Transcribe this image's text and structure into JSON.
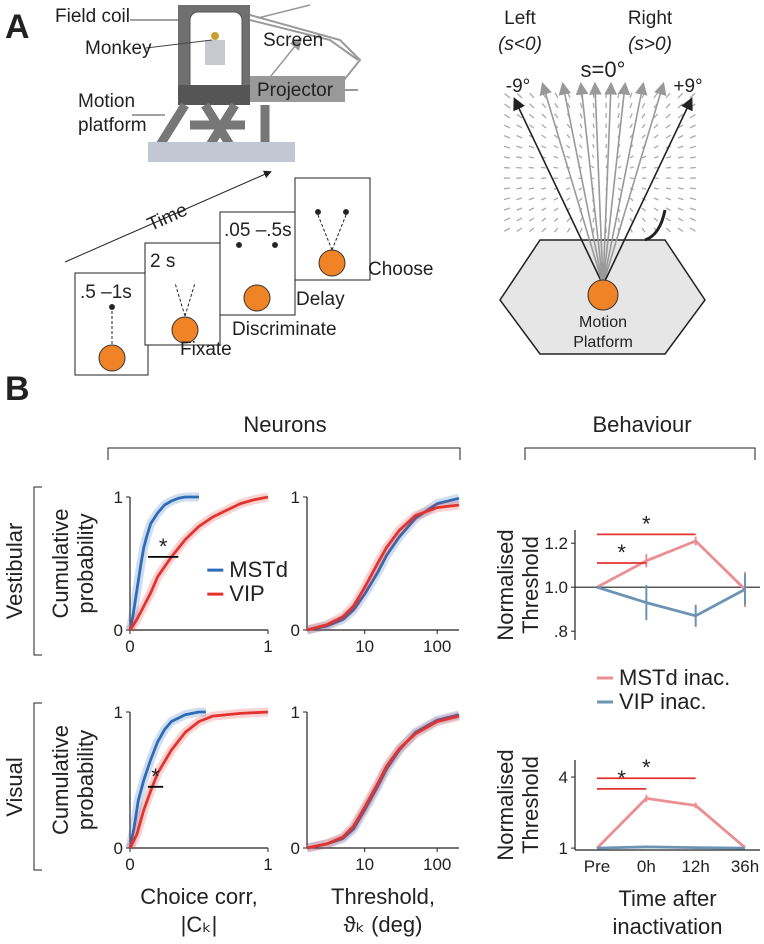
{
  "panel_a": {
    "letter": "A",
    "rig": {
      "field_coil": "Field coil",
      "monkey": "Monkey",
      "screen": "Screen",
      "projector": "Projector",
      "motion_platform": [
        "Motion",
        "platform"
      ]
    },
    "timeline": {
      "axis": "Time",
      "epochs": [
        {
          "duration": ".5 –1s",
          "label": "Fixate"
        },
        {
          "duration": "2 s",
          "label": "Discriminate"
        },
        {
          "duration": ".05 –.5s",
          "label": "Delay"
        },
        {
          "label": "Choose"
        }
      ]
    },
    "stimulus": {
      "left": "Left",
      "left_range": "(s<0)",
      "right": "Right",
      "right_range": "(s>0)",
      "center": "s=0°",
      "min_heading": "-9°",
      "max_heading": "+9°",
      "platform": [
        "Motion",
        "Platform"
      ]
    }
  },
  "panel_b": {
    "letter": "B",
    "headers": [
      "Neurons",
      "Behaviour"
    ],
    "rows": [
      "Vestibular",
      "Visual"
    ]
  },
  "chart_data": [
    {
      "type": "line",
      "xlim": [
        0,
        1
      ],
      "ylim": [
        0,
        1
      ],
      "xticks": [
        0,
        1
      ],
      "yticks": [
        0,
        1
      ],
      "ylabel": [
        "Cumulative",
        "probability"
      ],
      "legend": "right",
      "series": [
        {
          "name": "MSTd",
          "color": "#2e6bb8",
          "x": [
            0,
            0.02,
            0.05,
            0.08,
            0.1,
            0.12,
            0.15,
            0.2,
            0.25,
            0.3,
            0.35,
            0.4,
            0.5
          ],
          "values": [
            0,
            0.1,
            0.3,
            0.5,
            0.62,
            0.7,
            0.8,
            0.88,
            0.94,
            0.97,
            0.99,
            1,
            1
          ]
        },
        {
          "name": "VIP",
          "color": "#e2332f",
          "x": [
            0,
            0.05,
            0.1,
            0.15,
            0.2,
            0.3,
            0.4,
            0.5,
            0.6,
            0.7,
            0.8,
            0.9,
            1
          ],
          "values": [
            0,
            0.08,
            0.18,
            0.28,
            0.4,
            0.55,
            0.68,
            0.78,
            0.85,
            0.9,
            0.95,
            0.98,
            1
          ]
        }
      ],
      "brackets": [
        {
          "x": [
            0.13,
            0.35
          ],
          "y": 0.55,
          "label": "*"
        }
      ],
      "bracket_color": "#000000"
    },
    {
      "type": "line",
      "xscale": "log",
      "xlim": [
        1.6,
        200
      ],
      "ylim": [
        0,
        1
      ],
      "xticks": [
        10,
        100
      ],
      "yticks": [
        0,
        1
      ],
      "series": [
        {
          "color": "#2e6bb8",
          "x": [
            1.6,
            3,
            5,
            7,
            10,
            15,
            20,
            30,
            50,
            100,
            200
          ],
          "values": [
            0,
            0.03,
            0.08,
            0.15,
            0.27,
            0.43,
            0.56,
            0.7,
            0.84,
            0.95,
            0.99
          ]
        },
        {
          "color": "#e2332f",
          "x": [
            1.6,
            3,
            5,
            7,
            10,
            15,
            20,
            30,
            50,
            100,
            200
          ],
          "values": [
            0,
            0.04,
            0.1,
            0.18,
            0.32,
            0.5,
            0.62,
            0.75,
            0.86,
            0.92,
            0.94
          ]
        }
      ]
    },
    {
      "type": "line",
      "categories": [
        null,
        null,
        null,
        null
      ],
      "ylim": [
        0.76,
        1.26
      ],
      "yticks": [
        {
          "value": 0.8,
          "label": ".8"
        },
        {
          "value": 1,
          "label": "1.0"
        },
        {
          "value": 1.2,
          "label": "1.2"
        }
      ],
      "reference_line": 1,
      "ylabel": [
        "Normalised",
        "Threshold"
      ],
      "legend": "below",
      "series": [
        {
          "name": "MSTd inac.",
          "color": "#ec8f93",
          "values": [
            1,
            1.12,
            1.21,
            0.99
          ],
          "errors": [
            null,
            0.03,
            0.02,
            0.08
          ]
        },
        {
          "name": "VIP inac.",
          "color": "#6b93b4",
          "values": [
            1,
            0.93,
            0.87,
            0.99
          ],
          "errors": [
            null,
            0.08,
            0.05,
            0.07
          ]
        }
      ],
      "brackets": [
        {
          "x": [
            0,
            1
          ],
          "y": 1.11,
          "label": "*"
        },
        {
          "x": [
            0,
            2
          ],
          "y": 1.24,
          "label": "*"
        }
      ],
      "bracket_color": "#e2332f"
    },
    {
      "type": "line",
      "xlim": [
        0,
        1
      ],
      "ylim": [
        0,
        1
      ],
      "xticks": [
        0,
        1
      ],
      "yticks": [
        0,
        1
      ],
      "ylabel": [
        "Cumulative",
        "probability"
      ],
      "xlabel": [
        "Choice corr,",
        "|Cₖ|"
      ],
      "series": [
        {
          "color": "#2e6bb8",
          "x": [
            0,
            0.03,
            0.06,
            0.1,
            0.15,
            0.2,
            0.25,
            0.3,
            0.4,
            0.5,
            0.55
          ],
          "values": [
            0,
            0.15,
            0.35,
            0.5,
            0.65,
            0.78,
            0.87,
            0.93,
            0.98,
            1,
            1
          ]
        },
        {
          "color": "#e2332f",
          "x": [
            0,
            0.05,
            0.1,
            0.15,
            0.2,
            0.3,
            0.4,
            0.5,
            0.6,
            0.8,
            1
          ],
          "values": [
            0,
            0.1,
            0.28,
            0.42,
            0.55,
            0.72,
            0.85,
            0.93,
            0.97,
            0.99,
            1
          ]
        }
      ],
      "brackets": [
        {
          "x": [
            0.13,
            0.24
          ],
          "y": 0.45,
          "label": "*"
        }
      ],
      "bracket_color": "#000000"
    },
    {
      "type": "line",
      "xscale": "log",
      "xlim": [
        1.6,
        200
      ],
      "ylim": [
        0,
        1
      ],
      "xticks": [
        10,
        100
      ],
      "yticks": [
        0,
        1
      ],
      "xlabel": [
        "Threshold,",
        "ϑₖ (deg)"
      ],
      "series": [
        {
          "color": "#2e6bb8",
          "x": [
            1.6,
            3,
            5,
            7,
            10,
            15,
            20,
            30,
            50,
            100,
            200
          ],
          "values": [
            0,
            0.03,
            0.07,
            0.14,
            0.28,
            0.45,
            0.58,
            0.72,
            0.85,
            0.94,
            0.98
          ]
        },
        {
          "color": "#e2332f",
          "x": [
            1.6,
            3,
            5,
            7,
            10,
            15,
            20,
            30,
            50,
            100,
            200
          ],
          "values": [
            0,
            0.03,
            0.08,
            0.16,
            0.3,
            0.47,
            0.6,
            0.73,
            0.84,
            0.93,
            0.97
          ]
        }
      ]
    },
    {
      "type": "line",
      "categories": [
        "Pre",
        "0h",
        "12h",
        "36h"
      ],
      "ylim": [
        0.92,
        4.72
      ],
      "yticks": [
        1,
        4
      ],
      "ylabel": [
        "Normalised",
        "Threshold"
      ],
      "xlabel": [
        "Time after",
        "inactivation"
      ],
      "series": [
        {
          "color": "#ec8f93",
          "values": [
            1,
            3.1,
            2.8,
            1.02
          ],
          "errors": [
            null,
            0.15,
            0.12,
            null
          ]
        },
        {
          "color": "#6b93b4",
          "values": [
            1,
            1.05,
            1.02,
            1.0
          ],
          "errors": [
            null,
            null,
            null,
            null
          ]
        }
      ],
      "brackets": [
        {
          "x": [
            0,
            1
          ],
          "y": 3.5,
          "label": "*"
        },
        {
          "x": [
            0,
            2
          ],
          "y": 3.95,
          "label": "*"
        }
      ],
      "bracket_color": "#e2332f"
    }
  ]
}
